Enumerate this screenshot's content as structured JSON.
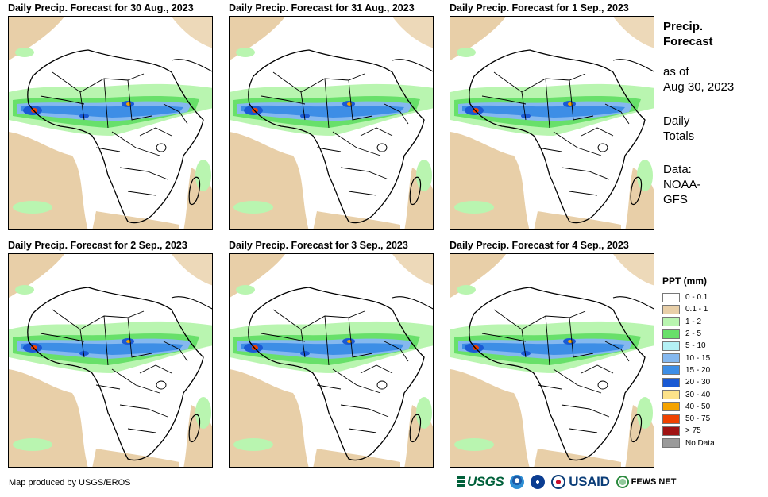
{
  "panels": [
    {
      "title": "Daily Precip. Forecast for 30 Aug., 2023"
    },
    {
      "title": "Daily Precip. Forecast for 31 Aug., 2023"
    },
    {
      "title": "Daily Precip. Forecast for 1 Sep., 2023"
    },
    {
      "title": "Daily Precip. Forecast for 2 Sep., 2023"
    },
    {
      "title": "Daily Precip. Forecast for 3 Sep., 2023"
    },
    {
      "title": "Daily Precip. Forecast for 4 Sep., 2023"
    }
  ],
  "side": {
    "heading_line1": "Precip.",
    "heading_line2": "Forecast",
    "asof_line1": "as of",
    "asof_line2": "Aug 30, 2023",
    "daily_line1": "Daily",
    "daily_line2": "Totals",
    "data_line1": "Data:",
    "data_line2": "NOAA-",
    "data_line3": "GFS"
  },
  "legend": {
    "title": "PPT (mm)",
    "items": [
      {
        "label": "0 - 0.1",
        "color": "#ffffff"
      },
      {
        "label": "0.1 - 1",
        "color": "#e8cfa8"
      },
      {
        "label": "1 - 2",
        "color": "#b9f5b0"
      },
      {
        "label": "2 - 5",
        "color": "#68e06a"
      },
      {
        "label": "5 - 10",
        "color": "#b4f1f5"
      },
      {
        "label": "10 - 15",
        "color": "#85b8ef"
      },
      {
        "label": "15 - 20",
        "color": "#3d8ee6"
      },
      {
        "label": "20 - 30",
        "color": "#1a5ad4"
      },
      {
        "label": "30 - 40",
        "color": "#fce28a"
      },
      {
        "label": "40 - 50",
        "color": "#f5a300"
      },
      {
        "label": "50 - 75",
        "color": "#ef4200"
      },
      {
        "label": "> 75",
        "color": "#a01313"
      },
      {
        "label": "No Data",
        "color": "#9a9a9a"
      }
    ]
  },
  "footer": {
    "credit": "Map produced by USGS/EROS",
    "usgs_text": "USGS",
    "usaid_text": "USAID",
    "fews_text": "FEWS NET"
  }
}
